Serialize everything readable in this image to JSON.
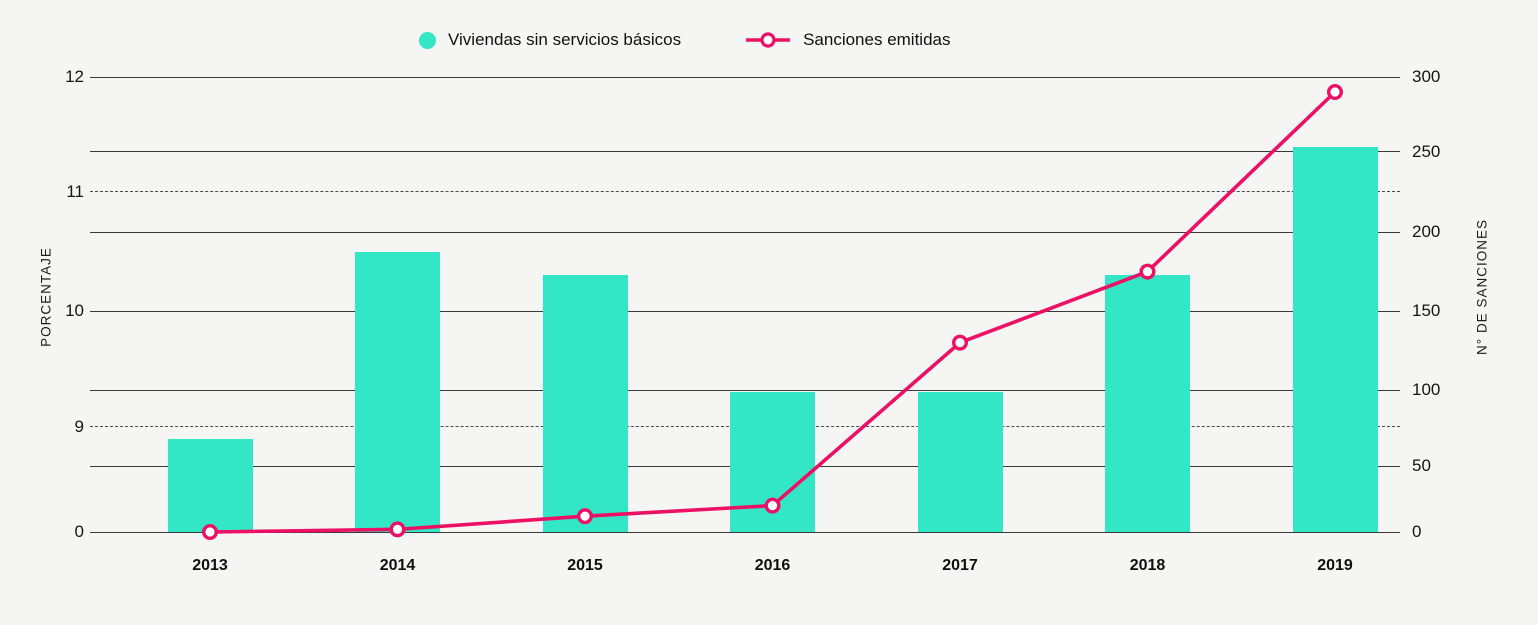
{
  "colors": {
    "background": "#f5f5f3",
    "grid": "#3a3a3a",
    "text": "#141414",
    "bar_teal": "#33e6c5",
    "line_pink": "#ec1164"
  },
  "chart_data": {
    "type": "combo-bar-line",
    "title": "",
    "categories": [
      "2013",
      "2014",
      "2015",
      "2016",
      "2017",
      "2018",
      "2019"
    ],
    "series": [
      {
        "name": "Viviendas sin servicios básicos",
        "type": "bar",
        "axis": "left",
        "unit": "%",
        "color": "#33e6c5",
        "values": [
          8.9,
          10.5,
          10.3,
          9.3,
          9.3,
          10.3,
          11.4
        ]
      },
      {
        "name": "Sanciones emitidas",
        "type": "line",
        "axis": "right",
        "marker": "open-circle",
        "color": "#ec1164",
        "values": [
          0,
          2,
          12,
          20,
          130,
          175,
          290
        ]
      }
    ],
    "left_axis": {
      "title": "PORCENTAJE",
      "tick_labels": [
        "0",
        "9",
        "10",
        "11",
        "12"
      ],
      "broken_axis": true,
      "dashed_gridline_ticks": [
        9,
        11
      ]
    },
    "right_axis": {
      "title": "N° DE SANCIONES",
      "tick_labels": [
        "0",
        "50",
        "100",
        "150",
        "200",
        "250",
        "300"
      ],
      "range": [
        0,
        300
      ]
    },
    "grid": "horizontal; solid at right-axis ticks, dashed at left-axis ticks 9 and 11",
    "legend_position": "top-center"
  }
}
